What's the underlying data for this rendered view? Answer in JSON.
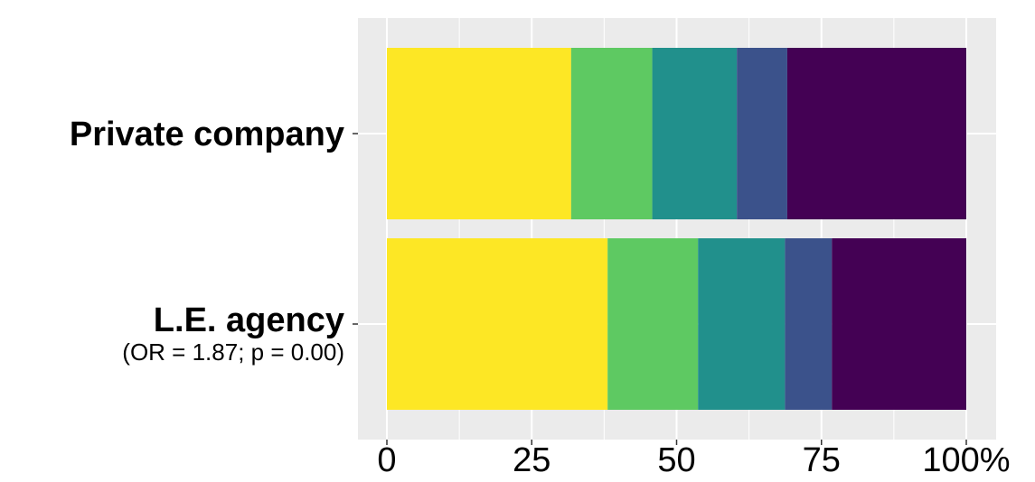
{
  "chart_data": {
    "type": "bar",
    "orientation": "horizontal",
    "stacked": true,
    "categories": [
      {
        "label": "Private company",
        "sublabel": ""
      },
      {
        "label": "L.E. agency",
        "sublabel": "(OR = 1.87; p = 0.00)"
      }
    ],
    "series": [
      {
        "color": "#FDE725",
        "values": [
          31.8,
          38.1
        ]
      },
      {
        "color": "#5EC962",
        "values": [
          14.0,
          15.6
        ]
      },
      {
        "color": "#21908C",
        "values": [
          14.6,
          15.0
        ]
      },
      {
        "color": "#3B528B",
        "values": [
          8.7,
          8.1
        ]
      },
      {
        "color": "#440154",
        "values": [
          30.9,
          23.2
        ]
      }
    ],
    "xlim": [
      0,
      100
    ],
    "x_ticks": [
      0,
      25,
      50,
      75,
      100
    ],
    "x_tick_labels": [
      "0",
      "25",
      "50",
      "75",
      "100%"
    ],
    "panel_background": "#EBEBEB",
    "grid": true,
    "legend": "none"
  }
}
